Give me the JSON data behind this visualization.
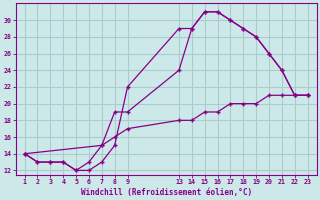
{
  "xlabel": "Windchill (Refroidissement éolien,°C)",
  "bg_color": "#cce8e8",
  "grid_color": "#aacccc",
  "line_color": "#880088",
  "line1_x": [
    1,
    2,
    3,
    4,
    5,
    6,
    7,
    8,
    9,
    13,
    14,
    15,
    16,
    17,
    18,
    19,
    20,
    21,
    22,
    23
  ],
  "line1_y": [
    14,
    13,
    13,
    13,
    12,
    12,
    13,
    15,
    22,
    29,
    29,
    31,
    31,
    30,
    29,
    28,
    26,
    24,
    21,
    21
  ],
  "line2_x": [
    1,
    7,
    8,
    9,
    13,
    14,
    15,
    16,
    17,
    18,
    19,
    20,
    21,
    22,
    23
  ],
  "line2_y": [
    14,
    15,
    19,
    19,
    24,
    29,
    31,
    31,
    30,
    29,
    28,
    26,
    24,
    21,
    21
  ],
  "line3_x": [
    1,
    2,
    3,
    4,
    5,
    6,
    7,
    8,
    9,
    13,
    14,
    15,
    16,
    17,
    18,
    19,
    20,
    21,
    22,
    23
  ],
  "line3_y": [
    14,
    13,
    13,
    13,
    12,
    13,
    15,
    16,
    17,
    18,
    18,
    19,
    19,
    20,
    20,
    20,
    21,
    21,
    21,
    21
  ],
  "ylim": [
    11.5,
    32
  ],
  "yticks": [
    12,
    14,
    16,
    18,
    20,
    22,
    24,
    26,
    28,
    30
  ],
  "xticks": [
    1,
    2,
    3,
    4,
    5,
    6,
    7,
    8,
    9,
    13,
    14,
    15,
    16,
    17,
    18,
    19,
    20,
    21,
    22,
    23
  ]
}
